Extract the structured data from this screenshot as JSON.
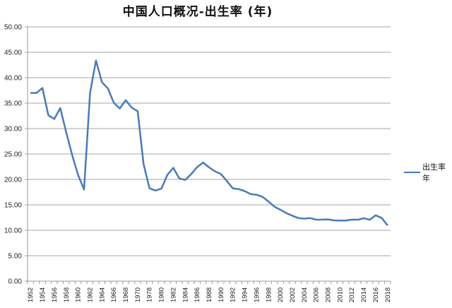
{
  "chart_data": {
    "type": "line",
    "title": "中国人口概况-出生率 (年)",
    "xlabel": "",
    "ylabel": "",
    "ylim": [
      0,
      50
    ],
    "yticks": [
      "0.00",
      "5.00",
      "10.00",
      "15.00",
      "20.00",
      "25.00",
      "30.00",
      "35.00",
      "40.00",
      "45.00",
      "50.00"
    ],
    "grid": true,
    "legend_position": "right",
    "categories": [
      "1952",
      "1953",
      "1954",
      "1955",
      "1956",
      "1957",
      "1958",
      "1959",
      "1960",
      "1961",
      "1962",
      "1963",
      "1964",
      "1965",
      "1966",
      "1967",
      "1968",
      "1969",
      "1970",
      "1975",
      "1978",
      "1979",
      "1980",
      "1981",
      "1982",
      "1983",
      "1984",
      "1985",
      "1986",
      "1987",
      "1988",
      "1989",
      "1990",
      "1991",
      "1992",
      "1993",
      "1994",
      "1995",
      "1996",
      "1997",
      "1998",
      "1999",
      "2000",
      "2001",
      "2002",
      "2003",
      "2004",
      "2005",
      "2006",
      "2007",
      "2008",
      "2009",
      "2010",
      "2011",
      "2012",
      "2013",
      "2014",
      "2015",
      "2016",
      "2017",
      "2018"
    ],
    "xtick_labels": [
      "1952",
      "1954",
      "1956",
      "1958",
      "1960",
      "1962",
      "1964",
      "1966",
      "1968",
      "1970",
      "1978",
      "1980",
      "1982",
      "1984",
      "1986",
      "1988",
      "1990",
      "1992",
      "1994",
      "1996",
      "1998",
      "2000",
      "2002",
      "2004",
      "2006",
      "2008",
      "2010",
      "2012",
      "2014",
      "2016",
      "2018"
    ],
    "series": [
      {
        "name": "出生率 年",
        "color": "#4a7ab8",
        "values": [
          37.0,
          37.0,
          37.97,
          32.6,
          31.9,
          34.03,
          29.22,
          24.78,
          20.86,
          18.02,
          37.01,
          43.37,
          39.14,
          37.88,
          35.05,
          33.96,
          35.59,
          34.11,
          33.43,
          23.01,
          18.25,
          17.82,
          18.21,
          20.91,
          22.28,
          20.19,
          19.9,
          21.04,
          22.43,
          23.33,
          22.37,
          21.58,
          21.06,
          19.68,
          18.24,
          18.09,
          17.7,
          17.12,
          16.98,
          16.57,
          15.64,
          14.64,
          14.03,
          13.38,
          12.86,
          12.41,
          12.29,
          12.4,
          12.09,
          12.1,
          12.14,
          11.95,
          11.9,
          11.93,
          12.1,
          12.08,
          12.37,
          12.07,
          12.95,
          12.43,
          10.94
        ]
      }
    ]
  },
  "legend": {
    "label": "出生率 年"
  }
}
